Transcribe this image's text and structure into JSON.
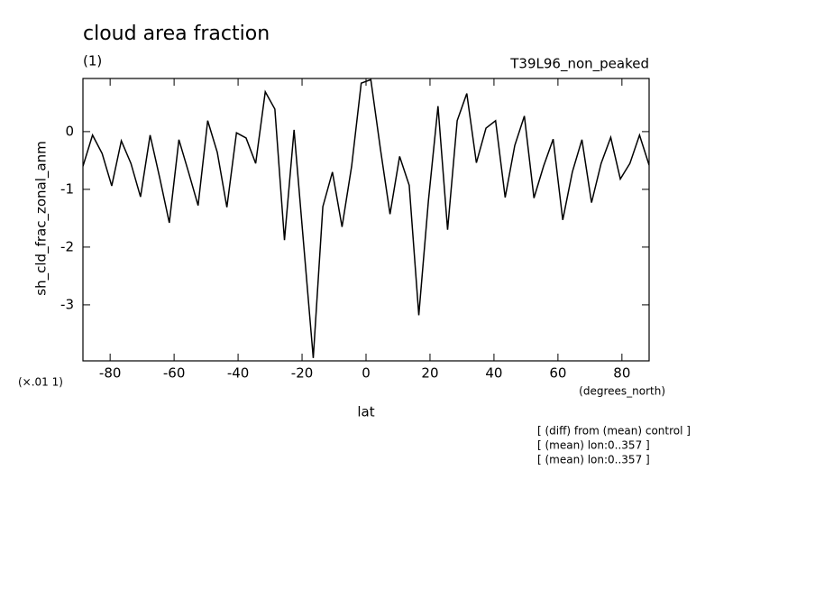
{
  "chart_data": {
    "type": "line",
    "title": "cloud area fraction",
    "subtitle": "(1)",
    "run_label": "T39L96_non_peaked",
    "y_label": "sh_cld_frac_zonal_anm",
    "y_scale_note": "(×.01 1)",
    "x_units": "(degrees_north)",
    "x_label": "lat",
    "notes": [
      "[ (diff) from (mean) control ]",
      "[ (mean) lon:0..357 ]",
      "[ (mean) lon:0..357 ]"
    ],
    "x": [
      -88.5,
      -85.5,
      -82.5,
      -79.5,
      -76.5,
      -73.5,
      -70.5,
      -67.5,
      -64.5,
      -61.5,
      -58.5,
      -55.5,
      -52.5,
      -49.5,
      -46.5,
      -43.5,
      -40.5,
      -37.5,
      -34.5,
      -31.5,
      -28.5,
      -25.5,
      -22.5,
      -19.5,
      -16.5,
      -13.5,
      -10.5,
      -7.5,
      -4.5,
      -1.5,
      1.5,
      4.5,
      7.5,
      10.5,
      13.5,
      16.5,
      19.5,
      22.5,
      25.5,
      28.5,
      31.5,
      34.5,
      37.5,
      40.5,
      43.5,
      46.5,
      49.5,
      52.5,
      55.5,
      58.5,
      61.5,
      64.5,
      67.5,
      70.5,
      73.5,
      76.5,
      79.5,
      82.5,
      85.5,
      88.5
    ],
    "series": [
      {
        "color": "#000000",
        "values": [
          -0.6,
          -0.06,
          -0.38,
          -0.94,
          -0.16,
          -0.55,
          -1.13,
          -0.06,
          -0.8,
          -1.58,
          -0.14,
          -0.7,
          -1.28,
          0.19,
          -0.36,
          -1.31,
          -0.02,
          -0.11,
          -0.55,
          0.69,
          0.39,
          -1.88,
          0.03,
          -1.95,
          -3.92,
          -1.3,
          -0.7,
          -1.65,
          -0.6,
          0.84,
          0.9,
          -0.3,
          -1.43,
          -0.43,
          -0.93,
          -3.18,
          -1.2,
          0.44,
          -1.7,
          0.19,
          0.66,
          -0.54,
          0.06,
          0.19,
          -1.14,
          -0.24,
          0.27,
          -1.15,
          -0.6,
          -0.13,
          -1.53,
          -0.7,
          -0.14,
          -1.23,
          -0.55,
          -0.1,
          -0.82,
          -0.55,
          -0.06,
          -0.58
        ]
      }
    ],
    "xlim": [
      -88.5,
      88.5
    ],
    "ylim": [
      -3.97,
      0.92
    ],
    "xticks": [
      -80,
      -60,
      -40,
      -20,
      0,
      20,
      40,
      60,
      80
    ],
    "yticks": [
      -3,
      -2,
      -1,
      0
    ]
  }
}
